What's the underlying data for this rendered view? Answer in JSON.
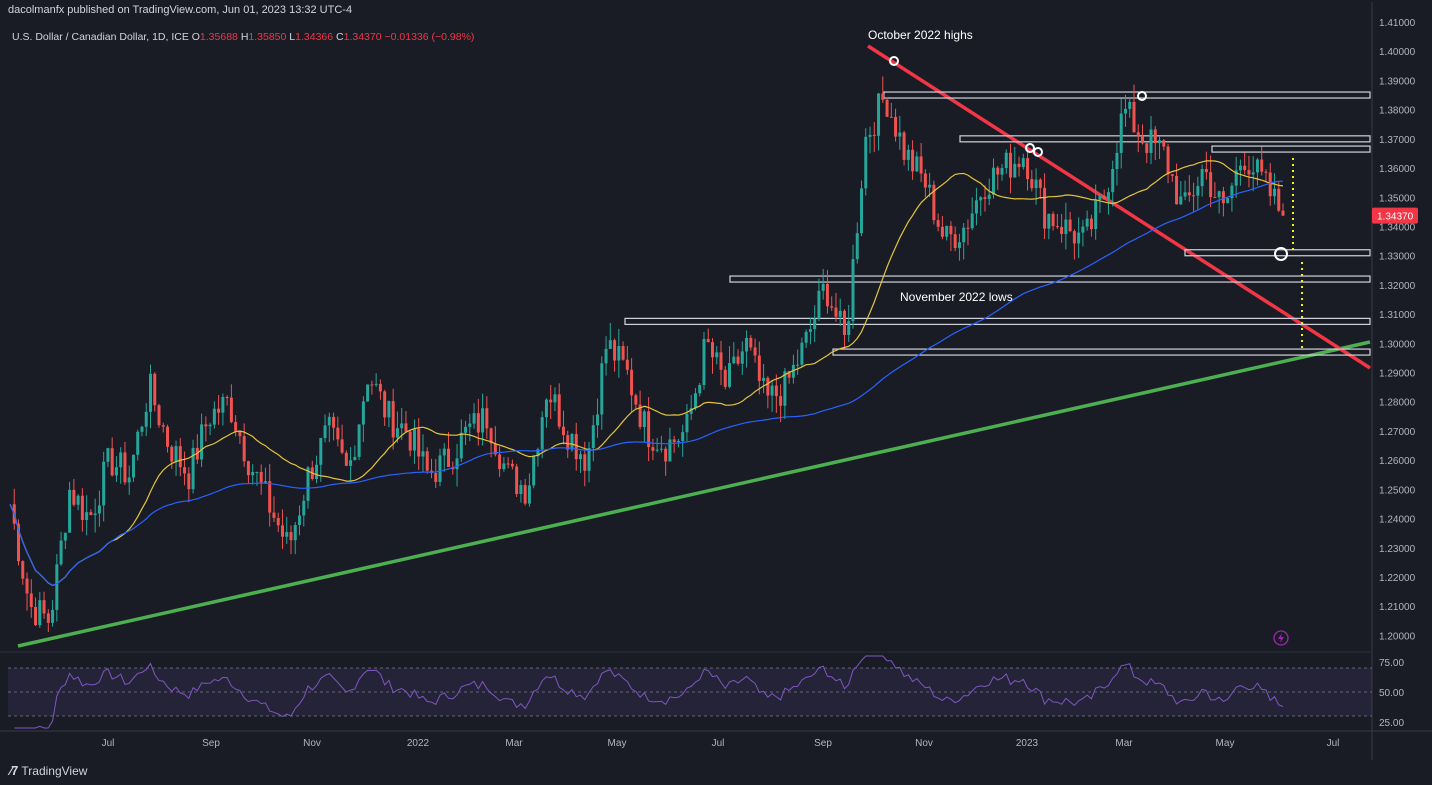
{
  "header": {
    "publisher": "dacolmanfx published on TradingView.com, Jun 01, 2023 13:32 UTC-4"
  },
  "symbol": {
    "name": "U.S. Dollar / Canadian Dollar, 1D, ICE",
    "open_label": "O",
    "open": "1.35688",
    "high_label": "H",
    "high": "1.35850",
    "low_label": "L",
    "low": "1.34366",
    "close_label": "C",
    "close": "1.34370",
    "change": "−0.01336 (−0.98%)"
  },
  "footer": {
    "brand": "TradingView"
  },
  "colors": {
    "background": "#1a1c25",
    "up": "#26a69a",
    "down": "#ef5350",
    "ma_fast": "#e3c53a",
    "ma_slow": "#2962ff",
    "trend_up": "#4caf50",
    "trend_down": "#f23645",
    "rsi": "#7e57c2",
    "price_badge": "#f23645"
  },
  "chart_data": {
    "type": "line",
    "title": "",
    "price_axis": {
      "min": 1.195,
      "max": 1.41,
      "ticks": [
        "1.41000",
        "1.40000",
        "1.39000",
        "1.38000",
        "1.37000",
        "1.36000",
        "1.35000",
        "1.34000",
        "1.33000",
        "1.32000",
        "1.31000",
        "1.30000",
        "1.29000",
        "1.28000",
        "1.27000",
        "1.26000",
        "1.25000",
        "1.24000",
        "1.23000",
        "1.22000",
        "1.21000",
        "1.20000"
      ]
    },
    "x_ticks": [
      "Jul",
      "Sep",
      "Nov",
      "2022",
      "Mar",
      "May",
      "Jul",
      "Sep",
      "Nov",
      "2023",
      "Mar",
      "May",
      "Jul"
    ],
    "last_price": "1.34370",
    "series": [
      {
        "name": "",
        "values_approx_close": [
          1.245,
          1.21,
          1.205,
          1.25,
          1.24,
          1.26,
          1.255,
          1.285,
          1.265,
          1.255,
          1.275,
          1.28,
          1.26,
          1.245,
          1.23,
          1.255,
          1.27,
          1.255,
          1.29,
          1.275,
          1.27,
          1.255,
          1.26,
          1.27,
          1.275,
          1.255,
          1.25,
          1.285,
          1.27,
          1.26,
          1.3,
          1.29,
          1.27,
          1.265,
          1.27,
          1.3,
          1.285,
          1.3,
          1.28,
          1.285,
          1.3,
          1.32,
          1.3,
          1.37,
          1.385,
          1.365,
          1.355,
          1.335,
          1.34,
          1.355,
          1.36,
          1.365,
          1.345,
          1.34,
          1.335,
          1.35,
          1.38,
          1.37,
          1.365,
          1.345,
          1.36,
          1.345,
          1.365,
          1.355,
          1.3437
        ]
      }
    ],
    "resistance_levels": [
      1.385,
      1.37,
      1.3665,
      1.331,
      1.322,
      1.3075,
      1.297
    ],
    "annotations": [
      "October 2022 highs",
      "November 2022 lows"
    ],
    "rsi": {
      "ticks": [
        "75.00",
        "50.00",
        "25.00"
      ],
      "range": [
        20,
        80
      ]
    }
  }
}
